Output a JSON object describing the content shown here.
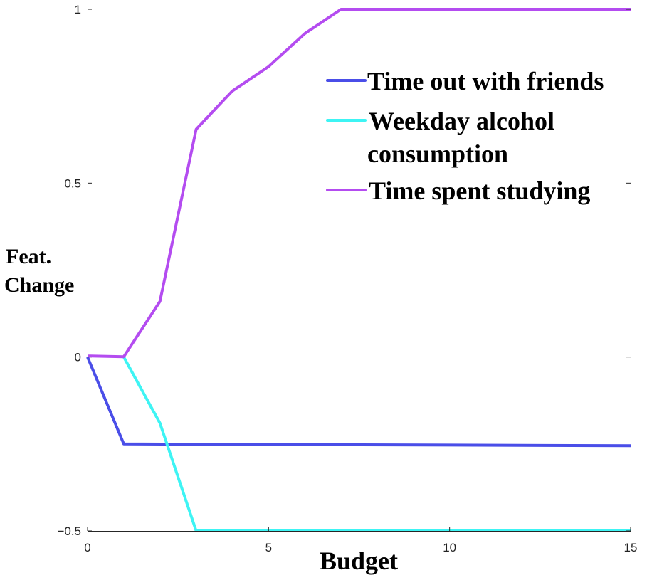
{
  "chart_data": {
    "type": "line",
    "xlabel": "Budget",
    "ylabel_lines": [
      "Feat.",
      "Change"
    ],
    "xlim": [
      0,
      15
    ],
    "ylim": [
      -0.5,
      1
    ],
    "xticks": [
      0,
      5,
      10,
      15
    ],
    "yticks": [
      -0.5,
      0,
      0.5,
      1
    ],
    "xtick_labels": [
      "0",
      "5",
      "10",
      "15"
    ],
    "ytick_labels": [
      "−0.5",
      "0",
      "0.5",
      "1"
    ],
    "grid": false,
    "legend_position": "top-right",
    "series": [
      {
        "name": "Time out with friends",
        "color": "#4a4ee8",
        "x": [
          0,
          1,
          15
        ],
        "y": [
          0,
          -0.25,
          -0.255
        ]
      },
      {
        "name": "Weekday alcohol consumption",
        "legend_lines": [
          "Weekday alcohol",
          "consumption"
        ],
        "color": "#3ef4f4",
        "x": [
          1,
          2,
          3,
          15
        ],
        "y": [
          0,
          -0.19,
          -0.5,
          -0.5
        ]
      },
      {
        "name": "Time spent studying",
        "color": "#b44cf0",
        "x": [
          0,
          1,
          2,
          3,
          4,
          5,
          6,
          7,
          15
        ],
        "y": [
          0.003,
          0.001,
          0.16,
          0.655,
          0.765,
          0.835,
          0.93,
          1,
          1
        ]
      }
    ]
  }
}
